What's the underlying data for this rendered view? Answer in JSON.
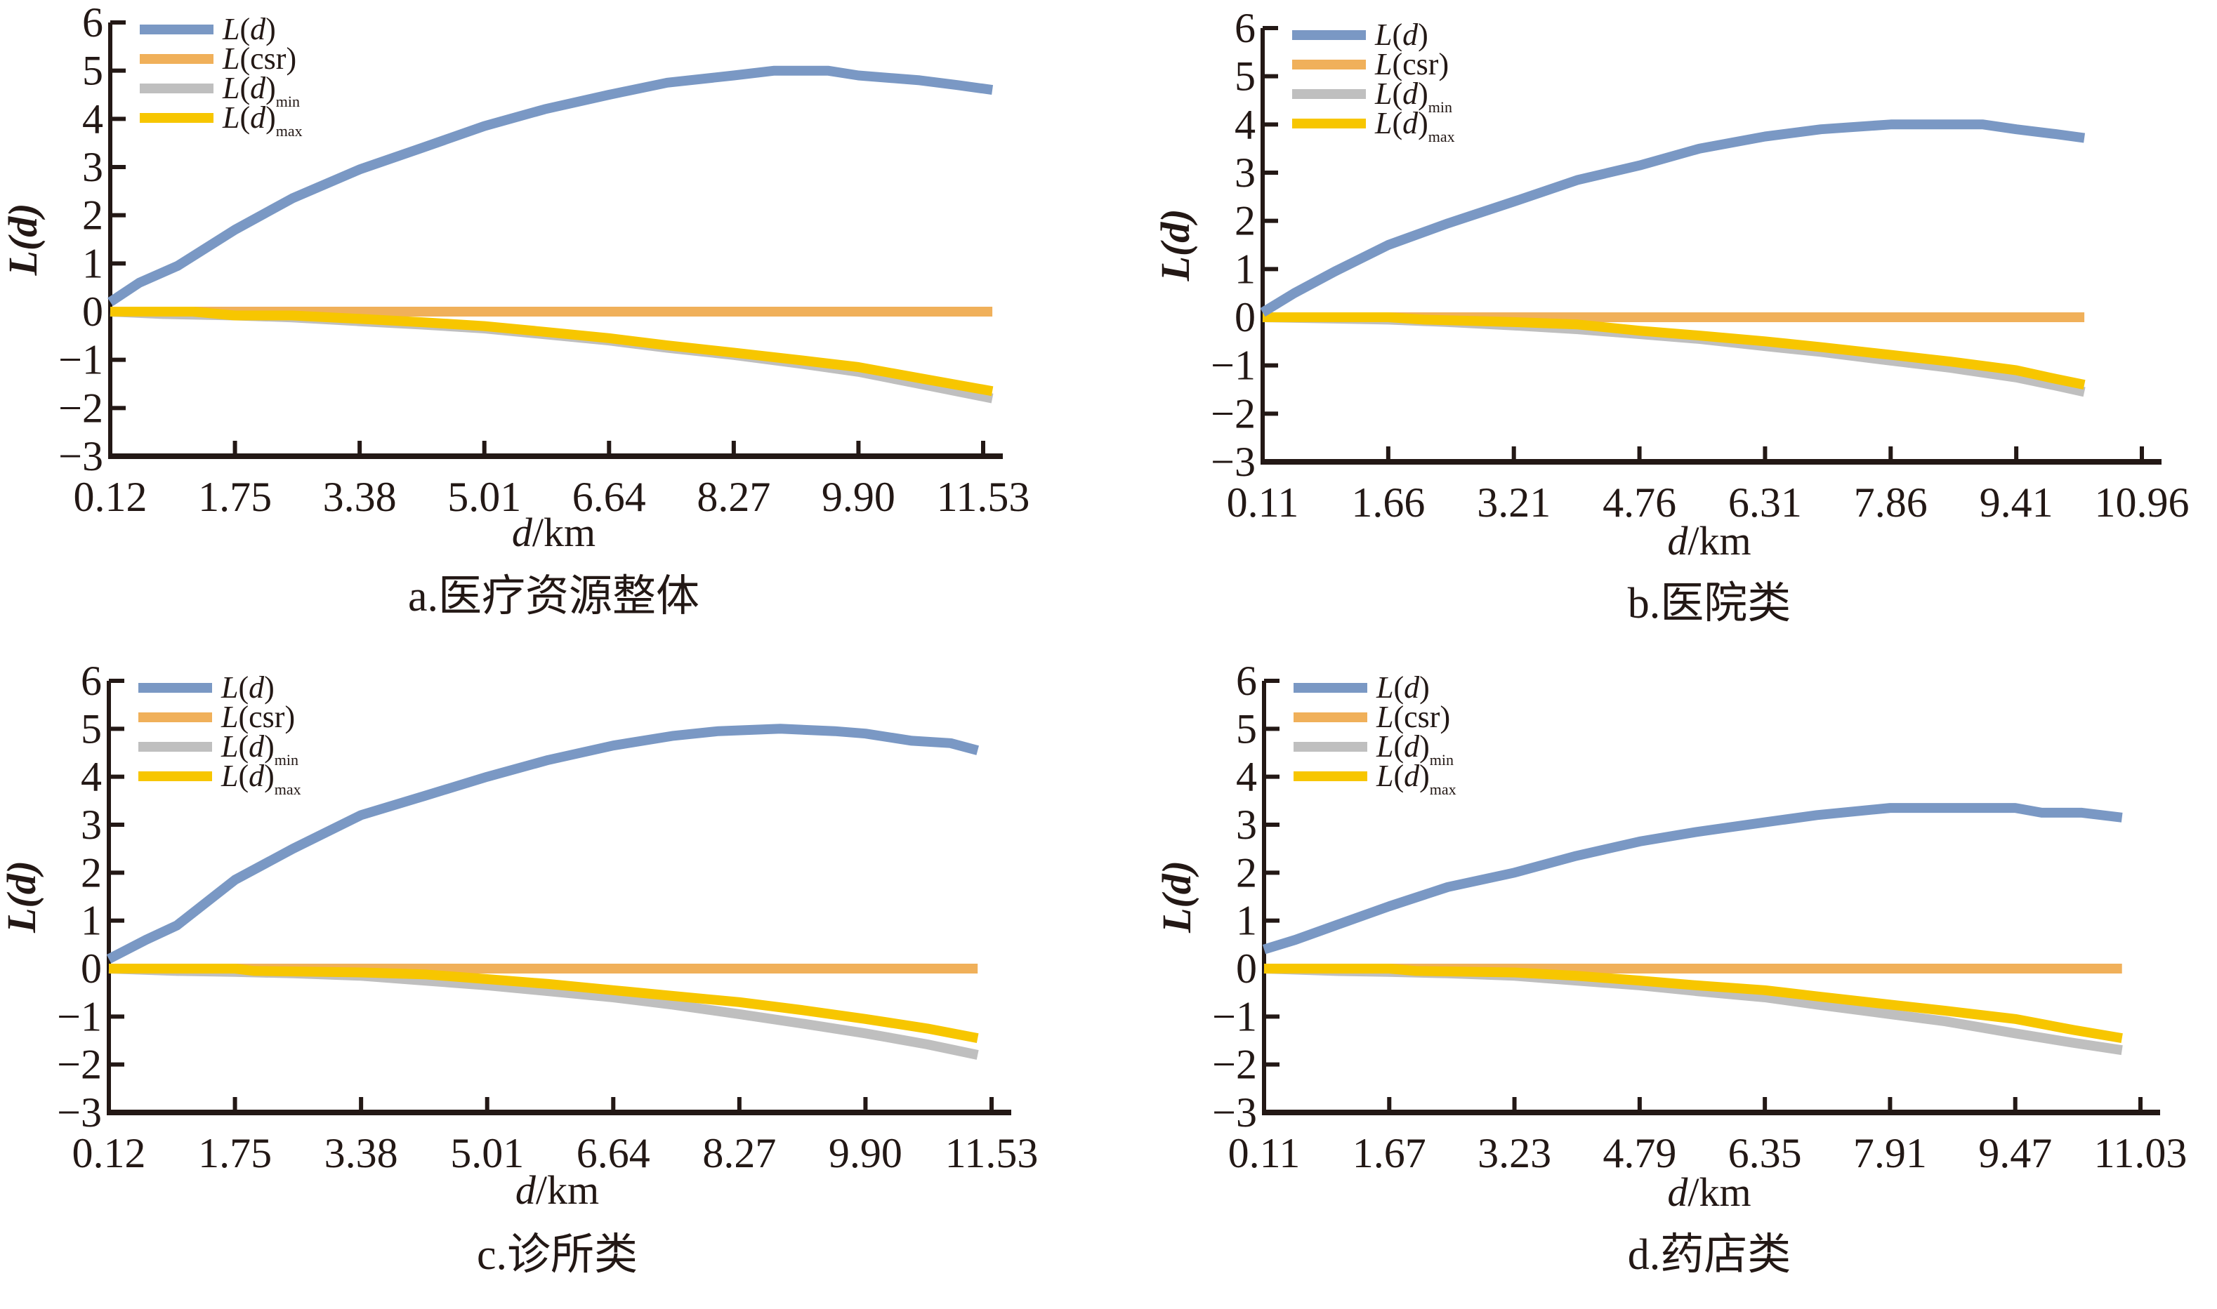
{
  "chart_data": [
    {
      "id": "a",
      "type": "line",
      "caption": "a.医疗资源整体",
      "xlabel_italic": "d",
      "xlabel_unit": "/km",
      "ylabel": "L(d)",
      "xlim": [
        0.12,
        11.53
      ],
      "ylim": [
        -3,
        6
      ],
      "xticks": [
        "0.12",
        "1.75",
        "3.38",
        "5.01",
        "6.64",
        "8.27",
        "9.90",
        "11.53"
      ],
      "yticks": [
        "6",
        "5",
        "4",
        "3",
        "2",
        "1",
        "0",
        "−1",
        "−2",
        "−3"
      ],
      "legend_position": "top-left",
      "series": [
        {
          "name": "L(d)",
          "color": "#7a98c4",
          "x": [
            0.12,
            0.5,
            1.0,
            1.75,
            2.5,
            3.38,
            4.2,
            5.01,
            5.8,
            6.64,
            7.4,
            8.27,
            8.8,
            9.5,
            9.9,
            10.7,
            11.2,
            11.65
          ],
          "y": [
            0.2,
            0.6,
            0.95,
            1.7,
            2.35,
            2.95,
            3.4,
            3.85,
            4.2,
            4.5,
            4.75,
            4.9,
            5.0,
            5.0,
            4.9,
            4.8,
            4.7,
            4.6
          ]
        },
        {
          "name": "L(csr)",
          "color": "#f0b05a",
          "x": [
            0.12,
            11.65
          ],
          "y": [
            0,
            0
          ]
        },
        {
          "name": "L(d)min",
          "color": "#bfbfbf",
          "x": [
            0.12,
            0.8,
            1.75,
            2.5,
            3.38,
            4.2,
            5.01,
            5.8,
            6.64,
            7.4,
            8.27,
            9.1,
            9.9,
            10.7,
            11.65
          ],
          "y": [
            0,
            -0.05,
            -0.08,
            -0.12,
            -0.2,
            -0.27,
            -0.35,
            -0.47,
            -0.6,
            -0.75,
            -0.9,
            -1.07,
            -1.25,
            -1.5,
            -1.8
          ]
        },
        {
          "name": "L(d)max",
          "color": "#f7c600",
          "x": [
            0.12,
            1.2,
            1.75,
            2.5,
            3.0,
            3.38,
            4.2,
            5.01,
            5.8,
            6.64,
            7.4,
            8.27,
            9.1,
            9.9,
            10.7,
            11.65
          ],
          "y": [
            0,
            0,
            -0.08,
            -0.08,
            -0.12,
            -0.15,
            -0.22,
            -0.3,
            -0.42,
            -0.55,
            -0.7,
            -0.85,
            -1.0,
            -1.15,
            -1.38,
            -1.65
          ]
        }
      ]
    },
    {
      "id": "b",
      "type": "line",
      "caption": "b.医院类",
      "xlabel_italic": "d",
      "xlabel_unit": "/km",
      "ylabel": "L(d)",
      "xlim": [
        0.11,
        10.96
      ],
      "ylim": [
        -3,
        6
      ],
      "xticks": [
        "0.11",
        "1.66",
        "3.21",
        "4.76",
        "6.31",
        "7.86",
        "9.41",
        "10.96"
      ],
      "yticks": [
        "6",
        "5",
        "4",
        "3",
        "2",
        "1",
        "0",
        "−1",
        "−2",
        "−3"
      ],
      "legend_position": "top-left",
      "series": [
        {
          "name": "L(d)",
          "color": "#7a98c4",
          "x": [
            0.11,
            0.5,
            1.0,
            1.66,
            2.4,
            3.21,
            4.0,
            4.76,
            5.5,
            6.31,
            7.0,
            7.86,
            8.6,
            9.0,
            9.41,
            9.9,
            10.25
          ],
          "y": [
            0.1,
            0.5,
            0.95,
            1.5,
            1.95,
            2.4,
            2.85,
            3.15,
            3.5,
            3.75,
            3.9,
            4.0,
            4.0,
            4.0,
            3.9,
            3.8,
            3.72
          ]
        },
        {
          "name": "L(csr)",
          "color": "#f0b05a",
          "x": [
            0.11,
            10.25
          ],
          "y": [
            0,
            0
          ]
        },
        {
          "name": "L(d)min",
          "color": "#bfbfbf",
          "x": [
            0.11,
            1.66,
            2.4,
            3.21,
            4.0,
            4.76,
            5.5,
            6.31,
            7.0,
            7.86,
            8.6,
            9.41,
            9.9,
            10.25
          ],
          "y": [
            0,
            -0.05,
            -0.1,
            -0.17,
            -0.25,
            -0.35,
            -0.45,
            -0.6,
            -0.72,
            -0.9,
            -1.05,
            -1.25,
            -1.42,
            -1.55
          ]
        },
        {
          "name": "L(d)max",
          "color": "#f7c600",
          "x": [
            0.11,
            1.66,
            2.1,
            3.21,
            4.0,
            4.76,
            5.5,
            6.31,
            7.0,
            7.86,
            8.6,
            9.41,
            9.9,
            10.25
          ],
          "y": [
            0,
            0,
            -0.05,
            -0.1,
            -0.15,
            -0.28,
            -0.38,
            -0.5,
            -0.62,
            -0.78,
            -0.92,
            -1.1,
            -1.28,
            -1.4
          ]
        }
      ]
    },
    {
      "id": "c",
      "type": "line",
      "caption": "c.诊所类",
      "xlabel_italic": "d",
      "xlabel_unit": "/km",
      "ylabel": "L(d)",
      "xlim": [
        0.12,
        11.53
      ],
      "ylim": [
        -3,
        6
      ],
      "xticks": [
        "0.12",
        "1.75",
        "3.38",
        "5.01",
        "6.64",
        "8.27",
        "9.90",
        "11.53"
      ],
      "yticks": [
        "6",
        "5",
        "4",
        "3",
        "2",
        "1",
        "0",
        "−1",
        "−2",
        "−3"
      ],
      "legend_position": "top-left",
      "series": [
        {
          "name": "L(d)",
          "color": "#7a98c4",
          "x": [
            0.12,
            0.6,
            1.0,
            1.75,
            2.5,
            3.38,
            4.2,
            5.01,
            5.8,
            6.64,
            7.4,
            8.0,
            8.8,
            9.5,
            9.9,
            10.5,
            11.0,
            11.35
          ],
          "y": [
            0.2,
            0.6,
            0.9,
            1.85,
            2.5,
            3.2,
            3.6,
            4.0,
            4.35,
            4.65,
            4.85,
            4.95,
            5.0,
            4.95,
            4.9,
            4.75,
            4.7,
            4.55
          ]
        },
        {
          "name": "L(csr)",
          "color": "#f0b05a",
          "x": [
            0.12,
            11.35
          ],
          "y": [
            0,
            0
          ]
        },
        {
          "name": "L(d)min",
          "color": "#bfbfbf",
          "x": [
            0.12,
            1.0,
            1.75,
            2.5,
            3.38,
            4.2,
            5.01,
            5.8,
            6.64,
            7.4,
            8.27,
            9.1,
            9.9,
            10.7,
            11.35
          ],
          "y": [
            0,
            -0.05,
            -0.07,
            -0.1,
            -0.15,
            -0.25,
            -0.35,
            -0.47,
            -0.6,
            -0.75,
            -0.95,
            -1.15,
            -1.35,
            -1.58,
            -1.8
          ]
        },
        {
          "name": "L(d)max",
          "color": "#f7c600",
          "x": [
            0.12,
            1.75,
            2.0,
            3.38,
            4.2,
            5.01,
            5.8,
            6.64,
            7.4,
            8.27,
            9.1,
            9.9,
            10.7,
            11.35
          ],
          "y": [
            0,
            0,
            -0.05,
            -0.08,
            -0.12,
            -0.22,
            -0.32,
            -0.45,
            -0.57,
            -0.7,
            -0.87,
            -1.05,
            -1.25,
            -1.45
          ]
        }
      ]
    },
    {
      "id": "d",
      "type": "line",
      "caption": "d.药店类",
      "xlabel_italic": "d",
      "xlabel_unit": "/km",
      "ylabel": "L(d)",
      "xlim": [
        0.11,
        11.03
      ],
      "ylim": [
        -3,
        6
      ],
      "xticks": [
        "0.11",
        "1.67",
        "3.23",
        "4.79",
        "6.35",
        "7.91",
        "9.47",
        "11.03"
      ],
      "yticks": [
        "6",
        "5",
        "4",
        "3",
        "2",
        "1",
        "0",
        "−1",
        "−2",
        "−3"
      ],
      "legend_position": "top-left",
      "series": [
        {
          "name": "L(d)",
          "color": "#7a98c4",
          "x": [
            0.11,
            0.5,
            1.0,
            1.67,
            2.4,
            3.23,
            4.0,
            4.79,
            5.5,
            6.35,
            7.0,
            7.91,
            8.6,
            9.47,
            9.8,
            10.3,
            10.8
          ],
          "y": [
            0.4,
            0.6,
            0.9,
            1.3,
            1.7,
            2.0,
            2.35,
            2.65,
            2.85,
            3.05,
            3.2,
            3.35,
            3.35,
            3.35,
            3.25,
            3.25,
            3.15
          ]
        },
        {
          "name": "L(csr)",
          "color": "#f0b05a",
          "x": [
            0.11,
            10.8
          ],
          "y": [
            0,
            0
          ]
        },
        {
          "name": "L(d)min",
          "color": "#bfbfbf",
          "x": [
            0.11,
            1.0,
            1.67,
            2.4,
            3.23,
            4.0,
            4.79,
            5.5,
            6.35,
            7.0,
            7.91,
            8.6,
            9.47,
            10.2,
            10.8
          ],
          "y": [
            0,
            -0.05,
            -0.07,
            -0.1,
            -0.15,
            -0.25,
            -0.35,
            -0.47,
            -0.6,
            -0.75,
            -0.95,
            -1.1,
            -1.35,
            -1.55,
            -1.7
          ]
        },
        {
          "name": "L(d)max",
          "color": "#f7c600",
          "x": [
            0.11,
            1.67,
            2.0,
            3.23,
            4.0,
            4.79,
            5.5,
            6.35,
            7.0,
            7.91,
            8.6,
            9.47,
            10.2,
            10.8
          ],
          "y": [
            0,
            0,
            -0.05,
            -0.08,
            -0.15,
            -0.25,
            -0.35,
            -0.45,
            -0.58,
            -0.75,
            -0.88,
            -1.05,
            -1.28,
            -1.45
          ]
        }
      ]
    }
  ]
}
